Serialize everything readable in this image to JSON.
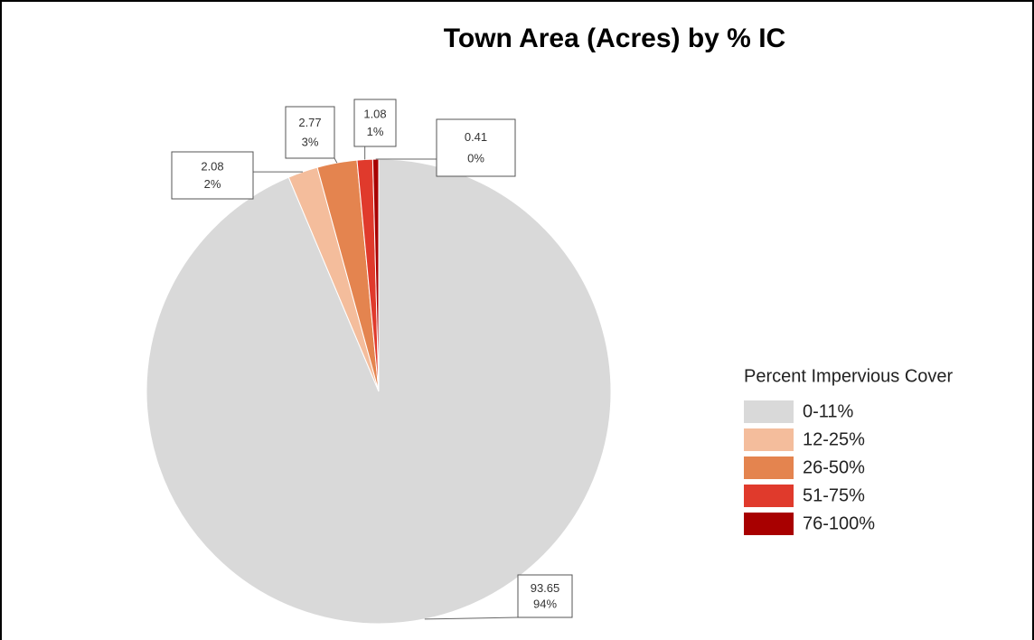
{
  "chart_data": {
    "type": "pie",
    "title": "Town  Area (Acres) by % IC",
    "categories": [
      "0-11%",
      "12-25%",
      "26-50%",
      "51-75%",
      "76-100%"
    ],
    "values": [
      93.65,
      2.08,
      2.77,
      1.08,
      0.41
    ],
    "percent_labels": [
      "94%",
      "2%",
      "3%",
      "1%",
      "0%"
    ],
    "colors": [
      "#d9d9d9",
      "#f4bd9c",
      "#e4844f",
      "#e03a2c",
      "#a80000"
    ],
    "legend_title": "Percent Impervious Cover",
    "legend": "right"
  }
}
